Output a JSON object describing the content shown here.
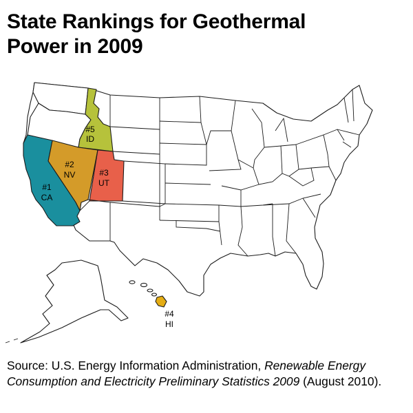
{
  "title": {
    "line1": "State Rankings for Geothermal",
    "line2": "Power in 2009"
  },
  "map": {
    "colors": {
      "california": "#1a8f9e",
      "nevada": "#d49b29",
      "utah": "#e8604a",
      "hawaii": "#e5ad14",
      "idaho": "#b6c23b",
      "other_states": "#ffffff",
      "borders": "#1a1a1a"
    },
    "labels": [
      {
        "rank": "#1",
        "state": "CA"
      },
      {
        "rank": "#2",
        "state": "NV"
      },
      {
        "rank": "#3",
        "state": "UT"
      },
      {
        "rank": "#4",
        "state": "HI"
      },
      {
        "rank": "#5",
        "state": "ID"
      }
    ]
  },
  "source": {
    "prefix": "Source: U.S. Energy Information Administration, ",
    "publication": "Renewable Energy Consumption and Electricity Preliminary Statistics 2009",
    "suffix": " (August 2010)."
  }
}
